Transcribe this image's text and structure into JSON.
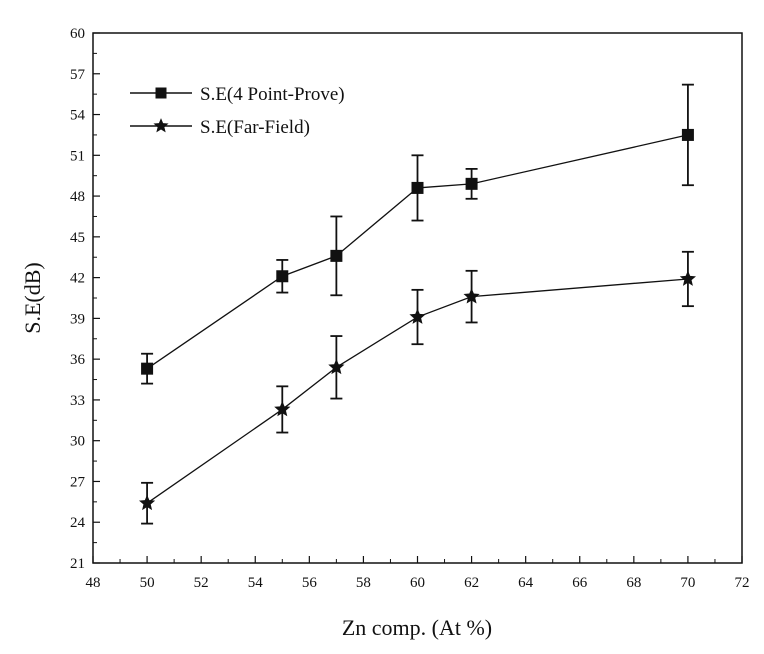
{
  "chart_data": {
    "type": "line",
    "xlabel": "Zn comp. (At %)",
    "ylabel": "S.E(dB)",
    "xlim": [
      48,
      72
    ],
    "ylim": [
      21,
      60
    ],
    "xticks": [
      48,
      50,
      52,
      54,
      56,
      58,
      60,
      62,
      64,
      66,
      68,
      70,
      72
    ],
    "yticks": [
      21,
      24,
      27,
      30,
      33,
      36,
      39,
      42,
      45,
      48,
      51,
      54,
      57,
      60
    ],
    "grid": false,
    "legend_position": "top-left",
    "series": [
      {
        "name": "S.E(4 Point-Prove)",
        "marker": "square",
        "color": "#111111",
        "x": [
          50,
          55,
          57,
          60,
          62,
          70
        ],
        "y": [
          35.3,
          42.1,
          43.6,
          48.6,
          48.9,
          52.5
        ],
        "err": [
          1.1,
          1.2,
          2.9,
          2.4,
          1.1,
          3.7
        ]
      },
      {
        "name": "S.E(Far-Field)",
        "marker": "star",
        "color": "#111111",
        "x": [
          50,
          55,
          57,
          60,
          62,
          70
        ],
        "y": [
          25.4,
          32.3,
          35.4,
          39.1,
          40.6,
          41.9
        ],
        "err": [
          1.5,
          1.7,
          2.3,
          2.0,
          1.9,
          2.0
        ]
      }
    ]
  }
}
